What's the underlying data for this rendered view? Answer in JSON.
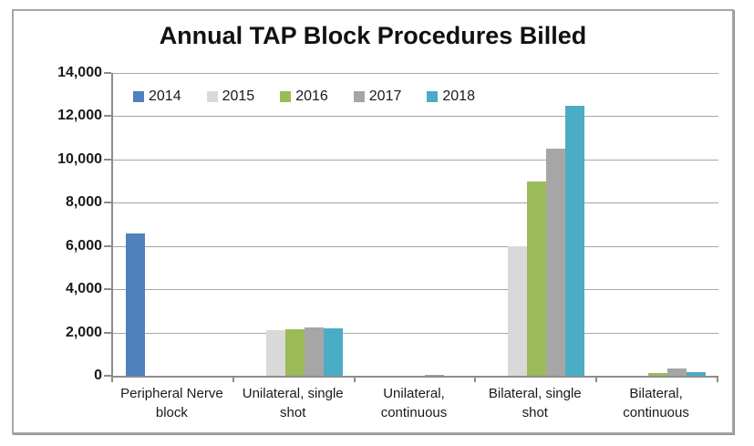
{
  "chart_data": {
    "type": "bar",
    "title": "Annual TAP Block Procedures Billed",
    "categories": [
      "Peripheral Nerve block",
      "Unilateral, single shot",
      "Unilateral, continuous",
      "Bilateral, single shot",
      "Bilateral, continuous"
    ],
    "series": [
      {
        "name": "2014",
        "color": "#4f81bd",
        "values": [
          6600,
          0,
          0,
          0,
          0
        ]
      },
      {
        "name": "2015",
        "color": "#d9d9d9",
        "values": [
          0,
          2100,
          0,
          6000,
          0
        ]
      },
      {
        "name": "2016",
        "color": "#9bbb59",
        "values": [
          0,
          2150,
          0,
          9000,
          125
        ]
      },
      {
        "name": "2017",
        "color": "#a6a6a6",
        "values": [
          0,
          2250,
          40,
          10500,
          350
        ]
      },
      {
        "name": "2018",
        "color": "#4bacc6",
        "values": [
          0,
          2200,
          0,
          12500,
          150
        ]
      }
    ],
    "y_ticks": [
      "14,000",
      "12,000",
      "10,000",
      "8,000",
      "6,000",
      "4,000",
      "2,000",
      "0"
    ],
    "ylim": [
      0,
      14000
    ],
    "xlabel": "",
    "ylabel": "",
    "grid": true,
    "legend_position": "top-left-inside",
    "colors": {
      "gridline": "#a6a6a6",
      "axis": "#8c8c8c",
      "chart_border": "#a6a6a6",
      "background": "#ffffff"
    }
  }
}
